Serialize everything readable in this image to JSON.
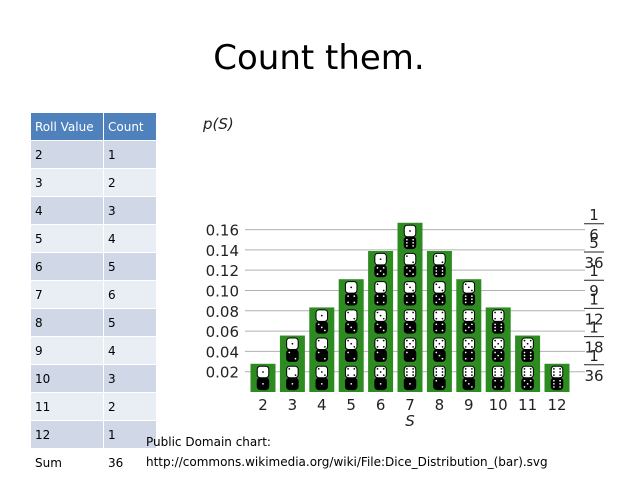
{
  "slide": {
    "title": "Count them.",
    "caption_line1": "Public Domain chart:",
    "caption_line2": "http://commons.wikimedia.org/wiki/File:Dice_Distribution_(bar).svg"
  },
  "table": {
    "headers": [
      "Roll Value",
      "Count"
    ],
    "rows": [
      [
        "2",
        "1"
      ],
      [
        "3",
        "2"
      ],
      [
        "4",
        "3"
      ],
      [
        "5",
        "4"
      ],
      [
        "6",
        "5"
      ],
      [
        "7",
        "6"
      ],
      [
        "8",
        "5"
      ],
      [
        "9",
        "4"
      ],
      [
        "10",
        "3"
      ],
      [
        "11",
        "2"
      ],
      [
        "12",
        "1"
      ],
      [
        "Sum",
        "36"
      ]
    ],
    "header_color": "#4f81bd",
    "row_colors": [
      "#d0d8e8",
      "#e9edf4"
    ]
  },
  "chart_data": {
    "type": "bar",
    "x": [
      2,
      3,
      4,
      5,
      6,
      7,
      8,
      9,
      10,
      11,
      12
    ],
    "counts": [
      1,
      2,
      3,
      4,
      5,
      6,
      5,
      4,
      3,
      2,
      1
    ],
    "values": [
      0.0278,
      0.0556,
      0.0833,
      0.1111,
      0.1389,
      0.1667,
      0.1389,
      0.1111,
      0.0833,
      0.0556,
      0.0278
    ],
    "ylabel": "p(S)",
    "xlabel": "S",
    "ylim": [
      0,
      0.17
    ],
    "yticks": [
      "0.02",
      "0.04",
      "0.06",
      "0.08",
      "0.10",
      "0.12",
      "0.14",
      "0.16"
    ],
    "ytick_values": [
      0.02,
      0.04,
      0.06,
      0.08,
      0.1,
      0.12,
      0.14,
      0.16
    ],
    "right_ticks": [
      {
        "num": "1",
        "den": "6",
        "value": 0.16667
      },
      {
        "num": "5",
        "den": "36",
        "value": 0.13889
      },
      {
        "num": "1",
        "den": "9",
        "value": 0.11111
      },
      {
        "num": "1",
        "den": "12",
        "value": 0.08333
      },
      {
        "num": "1",
        "den": "18",
        "value": 0.05556
      },
      {
        "num": "1",
        "den": "36",
        "value": 0.02778
      }
    ],
    "bar_color": "#2e8b22",
    "die_color": "#000000",
    "grid": true
  }
}
